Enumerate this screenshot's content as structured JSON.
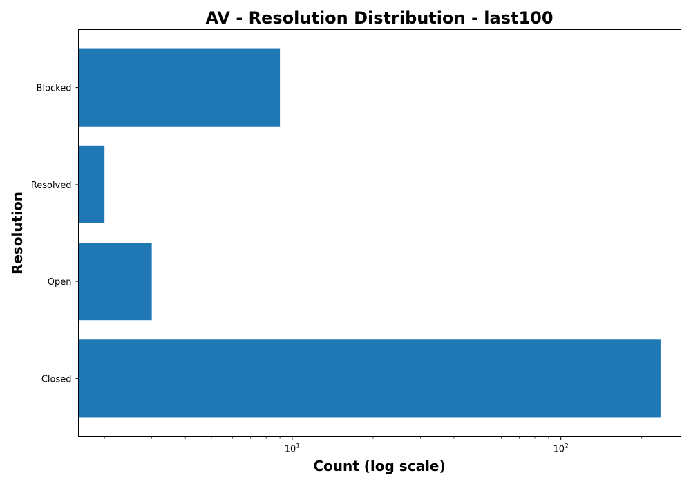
{
  "chart_data": {
    "type": "bar",
    "orientation": "horizontal",
    "title": "AV - Resolution Distribution - last100",
    "xlabel": "Count (log scale)",
    "ylabel": "Resolution",
    "x_scale": "log",
    "xlim": [
      1.6,
      280
    ],
    "x_ticks": [
      {
        "value": 10,
        "base": "10",
        "exp": "1"
      },
      {
        "value": 100,
        "base": "10",
        "exp": "2"
      }
    ],
    "categories": [
      "Closed",
      "Open",
      "Resolved",
      "Blocked"
    ],
    "values": [
      235,
      3,
      2,
      9
    ],
    "bar_color": "#1f77b4",
    "grid": false,
    "legend": false
  }
}
